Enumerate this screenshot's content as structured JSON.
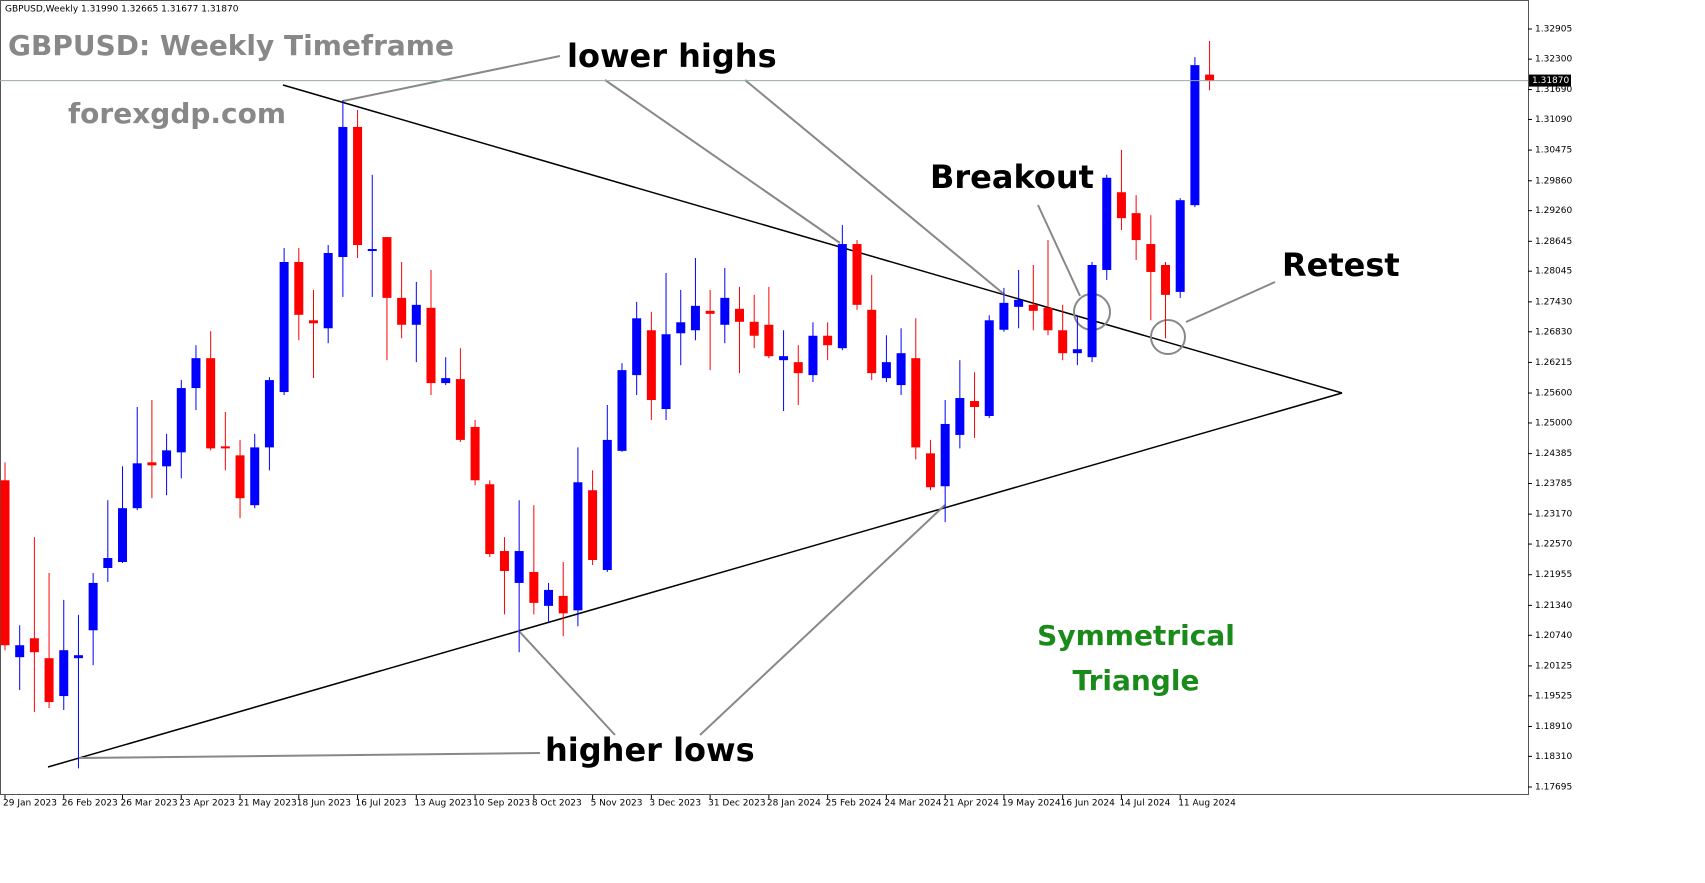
{
  "header": "GBPUSD,Weekly  1.31990 1.32665 1.31677 1.31870",
  "chart_data": {
    "type": "candlestick",
    "title": "GBPUSD: Weekly Timeframe",
    "subtitle": "forexgdp.com",
    "annotations": {
      "lower_highs": "lower highs",
      "higher_lows": "higher lows",
      "breakout": "Breakout",
      "retest": "Retest",
      "pattern": [
        "Symmetrical",
        "Triangle"
      ]
    },
    "categories": [
      "29 Jan 2023",
      null,
      null,
      null,
      "26 Feb 2023",
      null,
      null,
      null,
      "26 Mar 2023",
      null,
      null,
      null,
      "23 Apr 2023",
      null,
      null,
      null,
      "21 May 2023",
      null,
      null,
      null,
      "18 Jun 2023",
      null,
      null,
      null,
      "16 Jul 2023",
      null,
      null,
      null,
      "13 Aug 2023",
      null,
      null,
      null,
      "10 Sep 2023",
      null,
      null,
      null,
      "8 Oct 2023",
      null,
      null,
      null,
      "5 Nov 2023",
      null,
      null,
      null,
      "3 Dec 2023",
      null,
      null,
      null,
      "31 Dec 2023",
      null,
      null,
      null,
      "28 Jan 2024",
      null,
      null,
      null,
      "25 Feb 2024",
      null,
      null,
      null,
      "24 Mar 2024",
      null,
      null,
      null,
      "21 Apr 2024",
      null,
      null,
      null,
      "19 May 2024",
      null,
      null,
      null,
      "16 Jun 2024",
      null,
      null,
      null,
      "14 Jul 2024",
      null,
      null,
      null,
      "11 Aug 2024",
      null,
      null
    ],
    "open": [
      1.2385,
      1.203,
      1.2068,
      1.2028,
      1.1952,
      1.2028,
      1.2084,
      1.2209,
      1.2221,
      1.2329,
      1.2421,
      1.2413,
      1.2441,
      1.257,
      1.263,
      1.2453,
      1.2435,
      1.2335,
      1.2451,
      1.2562,
      1.2823,
      1.2706,
      1.269,
      1.2833,
      1.3094,
      1.2845,
      1.2873,
      1.2751,
      1.2697,
      1.2731,
      1.258,
      1.2588,
      1.2492,
      1.2377,
      1.2243,
      1.2179,
      1.2201,
      1.2133,
      1.2153,
      1.2124,
      1.2365,
      1.2205,
      1.2444,
      1.2596,
      1.2686,
      1.2528,
      1.268,
      1.2686,
      1.2725,
      1.2697,
      1.2729,
      1.2703,
      1.2697,
      1.2626,
      1.2622,
      1.2596,
      1.2675,
      1.265,
      1.2859,
      1.2727,
      1.259,
      1.2576,
      1.263,
      1.2439,
      1.2373,
      1.2476,
      1.2544,
      1.2514,
      1.2687,
      1.2733,
      1.2737,
      1.2731,
      1.2686,
      1.264,
      1.2632,
      1.2807,
      1.2963,
      1.2921,
      1.2859,
      1.2817,
      1.2763,
      1.2937,
      1.3199
    ],
    "high": [
      1.2421,
      1.2094,
      1.2271,
      1.2199,
      1.2145,
      1.2115,
      1.2199,
      1.2345,
      1.2413,
      1.2532,
      1.2546,
      1.2478,
      1.2586,
      1.2656,
      1.2684,
      1.2522,
      1.2466,
      1.2478,
      1.2592,
      1.2851,
      1.2851,
      1.2767,
      1.2857,
      1.3148,
      1.3128,
      1.2998,
      1.2873,
      1.2823,
      1.2783,
      1.2807,
      1.2632,
      1.265,
      1.2506,
      1.2385,
      1.2271,
      1.2345,
      1.2335,
      1.2179,
      1.2221,
      1.2451,
      1.2405,
      1.2536,
      1.262,
      1.2743,
      1.2723,
      1.2801,
      1.2767,
      1.2831,
      1.2767,
      1.2811,
      1.2773,
      1.2757,
      1.2773,
      1.2686,
      1.2656,
      1.2702,
      1.2702,
      1.2897,
      1.2867,
      1.2797,
      1.2676,
      1.269,
      1.271,
      1.2466,
      1.2546,
      1.2626,
      1.2602,
      1.2716,
      1.2771,
      1.2807,
      1.2817,
      1.2867,
      1.2737,
      1.2716,
      1.2823,
      1.2998,
      1.3048,
      1.2957,
      1.2917,
      1.2823,
      1.2951,
      1.3234,
      1.32665
    ],
    "low": [
      1.2044,
      1.1964,
      1.192,
      1.1928,
      1.1924,
      1.1807,
      1.2014,
      1.2181,
      1.2219,
      1.2325,
      1.2349,
      1.2355,
      1.2389,
      1.2526,
      1.2445,
      1.2405,
      1.2309,
      1.2329,
      1.2405,
      1.2556,
      1.2666,
      1.259,
      1.266,
      1.2753,
      1.2831,
      1.2753,
      1.2626,
      1.267,
      1.2622,
      1.2556,
      1.2576,
      1.2462,
      1.2375,
      1.2231,
      1.2116,
      1.204,
      1.2116,
      1.21,
      1.2072,
      1.2092,
      1.2215,
      1.2201,
      1.2442,
      1.2556,
      1.2506,
      1.2506,
      1.2616,
      1.2666,
      1.2606,
      1.266,
      1.26,
      1.265,
      1.263,
      1.2524,
      1.2536,
      1.2582,
      1.2626,
      1.2646,
      1.2727,
      1.2586,
      1.2582,
      1.2556,
      1.2427,
      1.2365,
      1.2301,
      1.2449,
      1.247,
      1.251,
      1.2683,
      1.269,
      1.2686,
      1.2676,
      1.2626,
      1.2616,
      1.2622,
      1.2787,
      1.2887,
      1.2827,
      1.2706,
      1.267,
      1.2751,
      1.2933,
      1.31677
    ],
    "close": [
      1.2054,
      1.2054,
      1.204,
      1.194,
      1.2044,
      1.2034,
      1.2179,
      1.2229,
      1.2329,
      1.2419,
      1.2415,
      1.2445,
      1.257,
      1.263,
      1.2449,
      1.2449,
      1.2349,
      1.2451,
      1.2586,
      1.2823,
      1.2717,
      1.27,
      1.2841,
      1.3094,
      1.2857,
      1.2849,
      1.2751,
      1.2697,
      1.2737,
      1.258,
      1.259,
      1.2466,
      1.2385,
      1.2237,
      1.2203,
      1.2243,
      1.2139,
      1.2165,
      1.2118,
      1.2381,
      1.2225,
      1.2466,
      1.2606,
      1.271,
      1.2546,
      1.2678,
      1.2702,
      1.2735,
      1.2719,
      1.2751,
      1.2703,
      1.2675,
      1.2634,
      1.2634,
      1.26,
      1.2675,
      1.2656,
      1.2859,
      1.2737,
      1.26,
      1.2622,
      1.264,
      1.2451,
      1.2371,
      1.2498,
      1.255,
      1.2532,
      1.2706,
      1.2741,
      1.2747,
      1.2725,
      1.2686,
      1.264,
      1.2648,
      1.2817,
      1.2992,
      1.2911,
      1.2867,
      1.2803,
      1.2757,
      1.2947,
      1.3218,
      1.3187
    ],
    "up_color": "#0000ff",
    "down_color": "#ff0000",
    "current_price": {
      "value": 1.3187,
      "label": "1.31870"
    },
    "ylim": [
      1.17595,
      1.33206
    ],
    "yticks": [
      1.32905,
      {
        "value": 1.323,
        "label": "1.32300"
      },
      {
        "value": 1.3169,
        "label": "1.31690"
      },
      {
        "value": 1.3109,
        "label": "1.31090"
      },
      1.30475,
      {
        "value": 1.2986,
        "label": "1.29860"
      },
      {
        "value": 1.2926,
        "label": "1.29260"
      },
      1.28645,
      1.28045,
      {
        "value": 1.2743,
        "label": "1.27430"
      },
      {
        "value": 1.2683,
        "label": "1.26830"
      },
      1.26215,
      {
        "value": 1.256,
        "label": "1.25600"
      },
      {
        "value": 1.25,
        "label": "1.25000"
      },
      1.24385,
      1.23785,
      {
        "value": 1.2317,
        "label": "1.23170"
      },
      {
        "value": 1.2257,
        "label": "1.22570"
      },
      1.21955,
      {
        "value": 1.2134,
        "label": "1.21340"
      },
      {
        "value": 1.2074,
        "label": "1.20740"
      },
      1.20125,
      1.19525,
      {
        "value": 1.1891,
        "label": "1.18910"
      },
      {
        "value": 1.1831,
        "label": "1.18310"
      },
      1.17695
    ],
    "grid": false
  }
}
